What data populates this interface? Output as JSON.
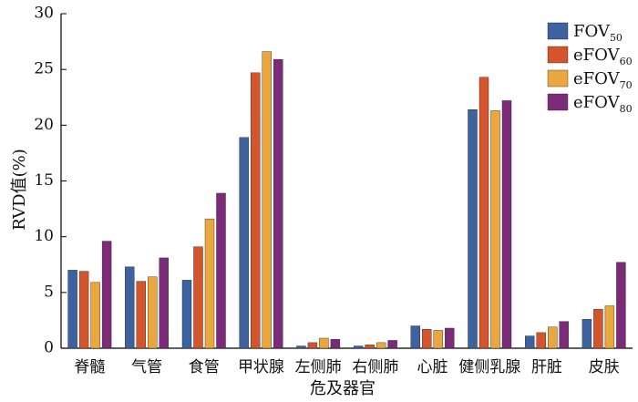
{
  "chart_data": {
    "type": "bar",
    "categories": [
      "脊髓",
      "气管",
      "食管",
      "甲状腺",
      "左侧肺",
      "右侧肺",
      "心脏",
      "健侧乳腺",
      "肝脏",
      "皮肤"
    ],
    "series": [
      {
        "name": "FOV",
        "name_sub": "50",
        "color": "#3e62a0",
        "values": [
          7.0,
          7.3,
          6.1,
          18.9,
          0.2,
          0.2,
          2.0,
          21.4,
          1.1,
          2.6
        ]
      },
      {
        "name": "eFOV",
        "name_sub": "60",
        "color": "#d4552c",
        "values": [
          6.9,
          6.0,
          9.1,
          24.7,
          0.5,
          0.3,
          1.7,
          24.3,
          1.4,
          3.5
        ]
      },
      {
        "name": "eFOV",
        "name_sub": "70",
        "color": "#eaa73e",
        "values": [
          5.9,
          6.4,
          11.6,
          26.6,
          0.9,
          0.5,
          1.6,
          21.3,
          1.9,
          3.8
        ]
      },
      {
        "name": "eFOV",
        "name_sub": "80",
        "color": "#7c2b78",
        "values": [
          9.6,
          8.1,
          13.9,
          25.9,
          0.8,
          0.7,
          1.8,
          22.2,
          2.4,
          7.7
        ]
      }
    ],
    "ylabel": "RVD值(%)",
    "xlabel": "危及器官",
    "ylim": [
      0,
      30
    ],
    "yticks": [
      0,
      5,
      10,
      15,
      20,
      25,
      30
    ],
    "grid": false,
    "legend_position": "top-right"
  }
}
